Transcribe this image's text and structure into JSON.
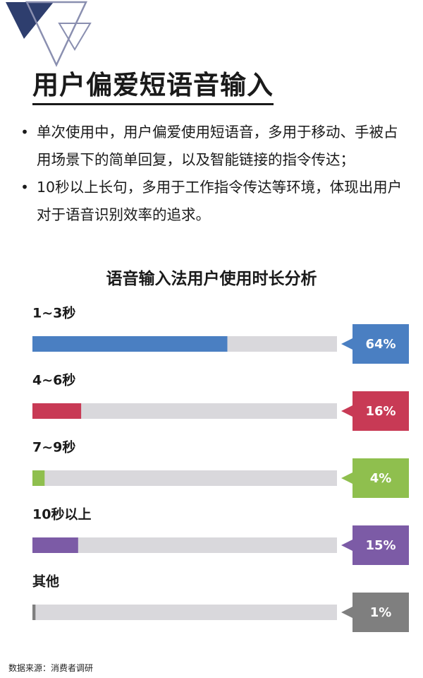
{
  "page": {
    "title": "用户偏爱短语音输入",
    "bullets": [
      "单次使用中，用户偏爱使用短语音，多用于移动、手被占用场景下的简单回复，以及智能链接的指令传达；",
      "10秒以上长句，多用于工作指令传达等环境，体现出用户对于语音识别效率的追求。"
    ],
    "source": "数据来源：消费者调研"
  },
  "colors": {
    "track": "#d9d8dc",
    "decor_dark": "#2e3e6e",
    "decor_light": "#8a8fb0"
  },
  "chart_data": {
    "type": "bar",
    "orientation": "horizontal",
    "title": "语音输入法用户使用时长分析",
    "categories": [
      "1~3秒",
      "4~6秒",
      "7~9秒",
      "10秒以上",
      "其他"
    ],
    "values": [
      64,
      16,
      4,
      15,
      1
    ],
    "value_labels": [
      "64%",
      "16%",
      "4%",
      "15%",
      "1%"
    ],
    "colors": [
      "#4a7fc2",
      "#c83a55",
      "#8fbf4e",
      "#7c5ba6",
      "#7f7f7f"
    ],
    "xlim": [
      0,
      100
    ],
    "unit": "%",
    "grid": false,
    "legend": "none"
  }
}
